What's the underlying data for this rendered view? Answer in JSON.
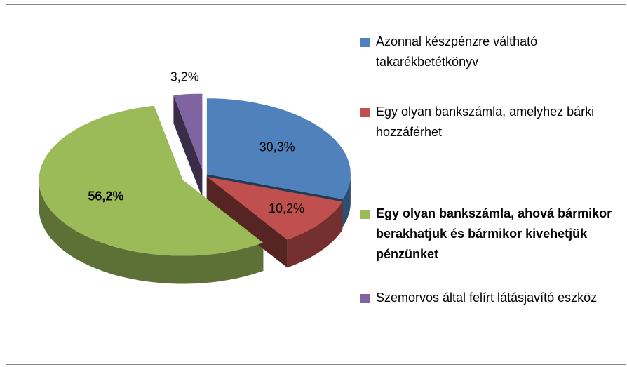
{
  "chart_data": {
    "type": "pie",
    "categories": [
      "Azonnal készpénzre váltható takarékbetétkönyv",
      "Egy olyan bankszámla, amelyhez bárki hozzáférhet",
      "Egy olyan bankszámla, ahová bármikor berakhatjuk és bármikor kivehetjük pénzünket",
      "Szemorvos által felírt látásjavító eszköz"
    ],
    "values": [
      30.3,
      10.2,
      56.2,
      3.2
    ],
    "value_labels": [
      "30,3%",
      "10,2%",
      "56,2%",
      "3,2%"
    ],
    "colors": [
      "#4f81bd",
      "#c0504d",
      "#9bbb59",
      "#8064a2"
    ],
    "legend": "right"
  }
}
